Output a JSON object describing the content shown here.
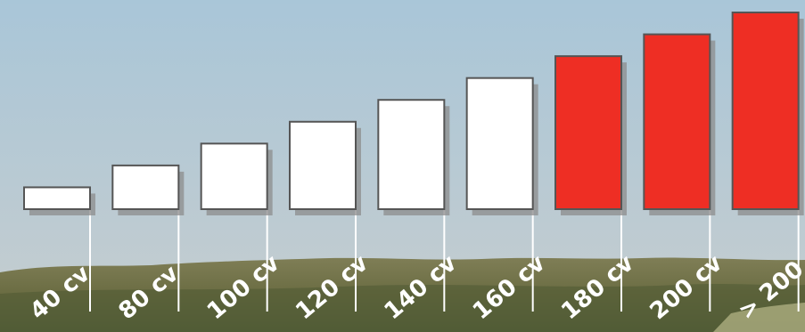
{
  "chart_data": {
    "type": "bar",
    "categories": [
      "40 cv",
      "80 cv",
      "100 cv",
      "120 cv",
      "140 cv",
      "160 cv",
      "180 cv",
      "200 cv",
      "> 200 cv"
    ],
    "values": [
      1,
      2,
      3,
      4,
      5,
      6,
      7,
      8,
      9
    ],
    "highlighted": [
      false,
      false,
      false,
      false,
      false,
      false,
      true,
      true,
      true
    ],
    "title": "",
    "xlabel": "",
    "ylabel": "",
    "ylim": [
      0,
      9.0
    ],
    "grid": false,
    "legend": "none",
    "colors": {
      "bar_default": "#ffffff",
      "bar_highlight": "#ee2e24",
      "bar_stroke": "#555555",
      "shadow": "#8c8c8c",
      "label": "#ffffff",
      "divider": "#ffffff"
    }
  }
}
